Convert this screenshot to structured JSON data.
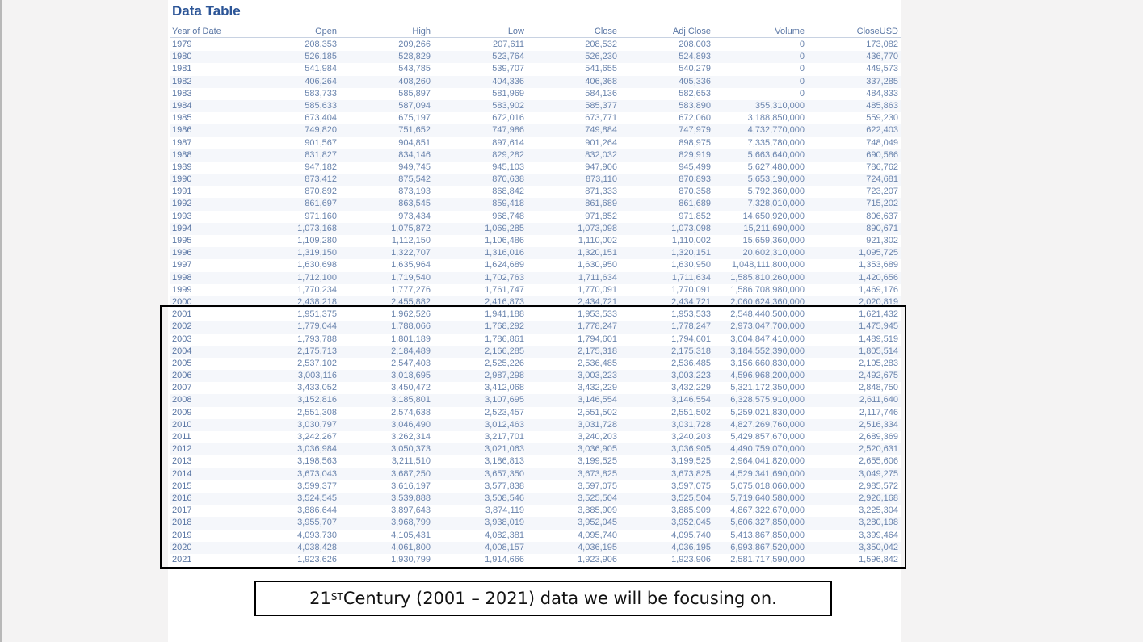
{
  "title": "Data Table",
  "columns": [
    "Year of Date",
    "Open",
    "High",
    "Low",
    "Close",
    "Adj Close",
    "Volume",
    "CloseUSD"
  ],
  "rows": [
    [
      "1979",
      "208,353",
      "209,266",
      "207,611",
      "208,532",
      "208,003",
      "0",
      "173,082"
    ],
    [
      "1980",
      "526,185",
      "528,829",
      "523,764",
      "526,230",
      "524,893",
      "0",
      "436,770"
    ],
    [
      "1981",
      "541,984",
      "543,785",
      "539,707",
      "541,655",
      "540,279",
      "0",
      "449,573"
    ],
    [
      "1982",
      "406,264",
      "408,260",
      "404,336",
      "406,368",
      "405,336",
      "0",
      "337,285"
    ],
    [
      "1983",
      "583,733",
      "585,897",
      "581,969",
      "584,136",
      "582,653",
      "0",
      "484,833"
    ],
    [
      "1984",
      "585,633",
      "587,094",
      "583,902",
      "585,377",
      "583,890",
      "355,310,000",
      "485,863"
    ],
    [
      "1985",
      "673,404",
      "675,197",
      "672,016",
      "673,771",
      "672,060",
      "3,188,850,000",
      "559,230"
    ],
    [
      "1986",
      "749,820",
      "751,652",
      "747,986",
      "749,884",
      "747,979",
      "4,732,770,000",
      "622,403"
    ],
    [
      "1987",
      "901,567",
      "904,851",
      "897,614",
      "901,264",
      "898,975",
      "7,335,780,000",
      "748,049"
    ],
    [
      "1988",
      "831,827",
      "834,146",
      "829,282",
      "832,032",
      "829,919",
      "5,663,640,000",
      "690,586"
    ],
    [
      "1989",
      "947,182",
      "949,745",
      "945,103",
      "947,906",
      "945,499",
      "5,627,480,000",
      "786,762"
    ],
    [
      "1990",
      "873,412",
      "875,542",
      "870,638",
      "873,110",
      "870,893",
      "5,653,190,000",
      "724,681"
    ],
    [
      "1991",
      "870,892",
      "873,193",
      "868,842",
      "871,333",
      "870,358",
      "5,792,360,000",
      "723,207"
    ],
    [
      "1992",
      "861,697",
      "863,545",
      "859,418",
      "861,689",
      "861,689",
      "7,328,010,000",
      "715,202"
    ],
    [
      "1993",
      "971,160",
      "973,434",
      "968,748",
      "971,852",
      "971,852",
      "14,650,920,000",
      "806,637"
    ],
    [
      "1994",
      "1,073,168",
      "1,075,872",
      "1,069,285",
      "1,073,098",
      "1,073,098",
      "15,211,690,000",
      "890,671"
    ],
    [
      "1995",
      "1,109,280",
      "1,112,150",
      "1,106,486",
      "1,110,002",
      "1,110,002",
      "15,659,360,000",
      "921,302"
    ],
    [
      "1996",
      "1,319,150",
      "1,322,707",
      "1,316,016",
      "1,320,151",
      "1,320,151",
      "20,602,310,000",
      "1,095,725"
    ],
    [
      "1997",
      "1,630,698",
      "1,635,964",
      "1,624,689",
      "1,630,950",
      "1,630,950",
      "1,048,111,800,000",
      "1,353,689"
    ],
    [
      "1998",
      "1,712,100",
      "1,719,540",
      "1,702,763",
      "1,711,634",
      "1,711,634",
      "1,585,810,260,000",
      "1,420,656"
    ],
    [
      "1999",
      "1,770,234",
      "1,777,276",
      "1,761,747",
      "1,770,091",
      "1,770,091",
      "1,586,708,980,000",
      "1,469,176"
    ],
    [
      "2000",
      "2,438,218",
      "2,455,882",
      "2,416,873",
      "2,434,721",
      "2,434,721",
      "2,060,624,360,000",
      "2,020,819"
    ],
    [
      "2001",
      "1,951,375",
      "1,962,526",
      "1,941,188",
      "1,953,533",
      "1,953,533",
      "2,548,440,500,000",
      "1,621,432"
    ],
    [
      "2002",
      "1,779,044",
      "1,788,066",
      "1,768,292",
      "1,778,247",
      "1,778,247",
      "2,973,047,700,000",
      "1,475,945"
    ],
    [
      "2003",
      "1,793,788",
      "1,801,189",
      "1,786,861",
      "1,794,601",
      "1,794,601",
      "3,004,847,410,000",
      "1,489,519"
    ],
    [
      "2004",
      "2,175,713",
      "2,184,489",
      "2,166,285",
      "2,175,318",
      "2,175,318",
      "3,184,552,390,000",
      "1,805,514"
    ],
    [
      "2005",
      "2,537,102",
      "2,547,403",
      "2,525,226",
      "2,536,485",
      "2,536,485",
      "3,156,660,830,000",
      "2,105,283"
    ],
    [
      "2006",
      "3,003,116",
      "3,018,695",
      "2,987,298",
      "3,003,223",
      "3,003,223",
      "4,596,968,200,000",
      "2,492,675"
    ],
    [
      "2007",
      "3,433,052",
      "3,450,472",
      "3,412,068",
      "3,432,229",
      "3,432,229",
      "5,321,172,350,000",
      "2,848,750"
    ],
    [
      "2008",
      "3,152,816",
      "3,185,801",
      "3,107,695",
      "3,146,554",
      "3,146,554",
      "6,328,575,910,000",
      "2,611,640"
    ],
    [
      "2009",
      "2,551,308",
      "2,574,638",
      "2,523,457",
      "2,551,502",
      "2,551,502",
      "5,259,021,830,000",
      "2,117,746"
    ],
    [
      "2010",
      "3,030,797",
      "3,046,490",
      "3,012,463",
      "3,031,728",
      "3,031,728",
      "4,827,269,760,000",
      "2,516,334"
    ],
    [
      "2011",
      "3,242,267",
      "3,262,314",
      "3,217,701",
      "3,240,203",
      "3,240,203",
      "5,429,857,670,000",
      "2,689,369"
    ],
    [
      "2012",
      "3,036,984",
      "3,050,373",
      "3,021,063",
      "3,036,905",
      "3,036,905",
      "4,490,759,070,000",
      "2,520,631"
    ],
    [
      "2013",
      "3,198,563",
      "3,211,510",
      "3,186,813",
      "3,199,525",
      "3,199,525",
      "2,964,041,820,000",
      "2,655,606"
    ],
    [
      "2014",
      "3,673,043",
      "3,687,250",
      "3,657,350",
      "3,673,825",
      "3,673,825",
      "4,529,341,690,000",
      "3,049,275"
    ],
    [
      "2015",
      "3,599,377",
      "3,616,197",
      "3,577,838",
      "3,597,075",
      "3,597,075",
      "5,075,018,060,000",
      "2,985,572"
    ],
    [
      "2016",
      "3,524,545",
      "3,539,888",
      "3,508,546",
      "3,525,504",
      "3,525,504",
      "5,719,640,580,000",
      "2,926,168"
    ],
    [
      "2017",
      "3,886,644",
      "3,897,643",
      "3,874,119",
      "3,885,909",
      "3,885,909",
      "4,867,322,670,000",
      "3,225,304"
    ],
    [
      "2018",
      "3,955,707",
      "3,968,799",
      "3,938,019",
      "3,952,045",
      "3,952,045",
      "5,606,327,850,000",
      "3,280,198"
    ],
    [
      "2019",
      "4,093,730",
      "4,105,431",
      "4,082,381",
      "4,095,740",
      "4,095,740",
      "5,413,867,850,000",
      "3,399,464"
    ],
    [
      "2020",
      "4,038,428",
      "4,061,800",
      "4,008,157",
      "4,036,195",
      "4,036,195",
      "6,993,867,520,000",
      "3,350,042"
    ],
    [
      "2021",
      "1,923,626",
      "1,930,799",
      "1,914,666",
      "1,923,906",
      "1,923,906",
      "2,581,717,590,000",
      "1,596,842"
    ]
  ],
  "caption": {
    "prefix": "21",
    "superscript": "ST",
    "suffix": " Century (2001 – 2021) data we will be focusing on."
  }
}
